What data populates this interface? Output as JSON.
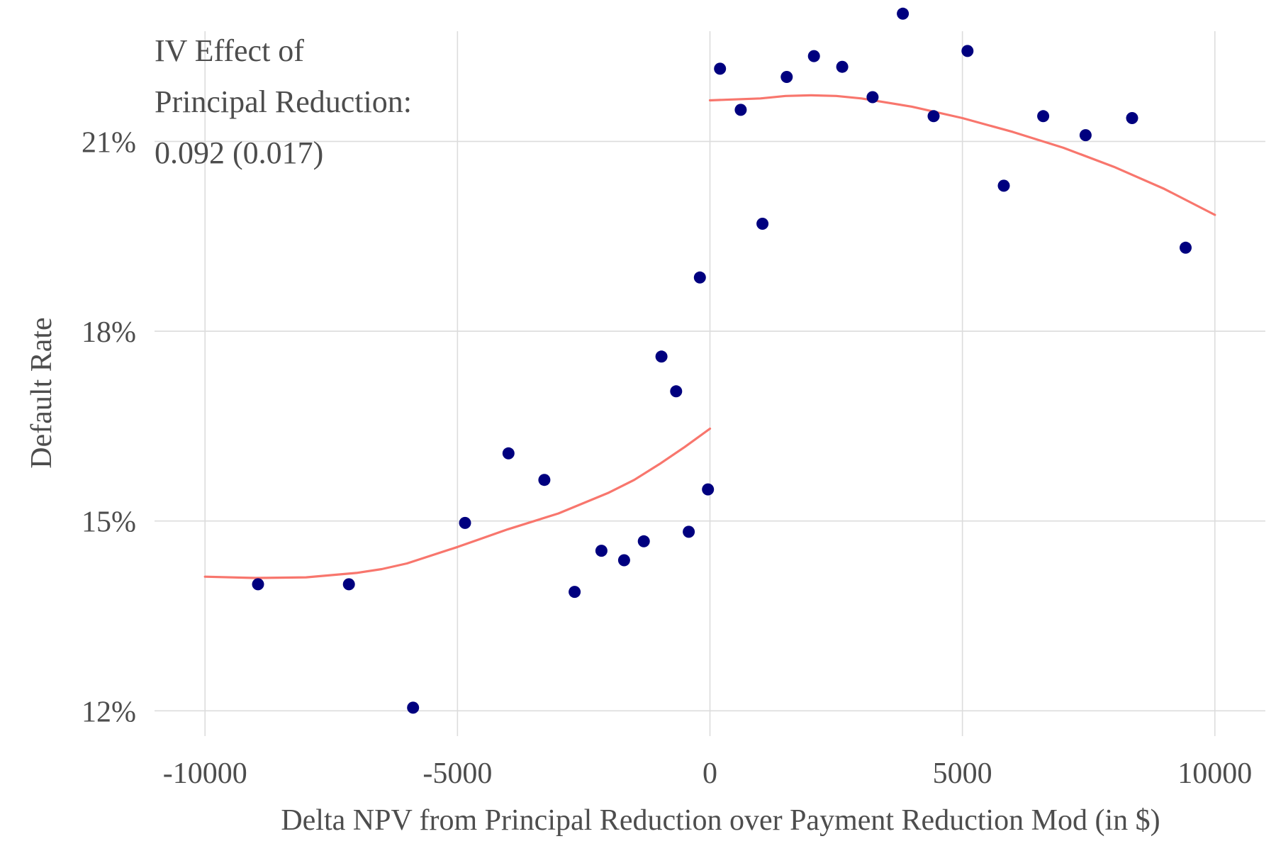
{
  "chart_data": {
    "type": "scatter",
    "title": "",
    "xlabel": "Delta NPV from Principal Reduction over Payment Reduction Mod (in $)",
    "ylabel": "Default Rate",
    "xlim": [
      -11000,
      11000
    ],
    "ylim": [
      11.6,
      22.9
    ],
    "x_ticks": [
      -10000,
      -5000,
      0,
      5000,
      10000
    ],
    "x_tick_labels": [
      "-10000",
      "-5000",
      "0",
      "5000",
      "10000"
    ],
    "y_ticks": [
      12,
      15,
      18,
      21
    ],
    "y_tick_labels": [
      "12%",
      "15%",
      "18%",
      "21%"
    ],
    "grid": true,
    "annotation": [
      "IV Effect of",
      "Principal Reduction:",
      "0.092 (0.017)"
    ],
    "colors": {
      "points": "#00007f",
      "fit": "#f8766d",
      "grid": "#dcdcdc",
      "text": "#4d4d4d"
    },
    "points": [
      {
        "x": -8950,
        "y": 14.0
      },
      {
        "x": -7150,
        "y": 14.0
      },
      {
        "x": -5880,
        "y": 12.05
      },
      {
        "x": -4850,
        "y": 14.97
      },
      {
        "x": -3990,
        "y": 16.07
      },
      {
        "x": -3280,
        "y": 15.65
      },
      {
        "x": -2680,
        "y": 13.88
      },
      {
        "x": -2150,
        "y": 14.53
      },
      {
        "x": -1700,
        "y": 14.38
      },
      {
        "x": -1310,
        "y": 14.68
      },
      {
        "x": -960,
        "y": 17.6
      },
      {
        "x": -670,
        "y": 17.05
      },
      {
        "x": -420,
        "y": 14.83
      },
      {
        "x": -200,
        "y": 18.85
      },
      {
        "x": -40,
        "y": 15.5
      },
      {
        "x": 200,
        "y": 22.15
      },
      {
        "x": 610,
        "y": 21.5
      },
      {
        "x": 1040,
        "y": 19.7
      },
      {
        "x": 1520,
        "y": 22.02
      },
      {
        "x": 2060,
        "y": 22.35
      },
      {
        "x": 2620,
        "y": 22.18
      },
      {
        "x": 3220,
        "y": 21.7
      },
      {
        "x": 3820,
        "y": 23.02
      },
      {
        "x": 4430,
        "y": 21.4
      },
      {
        "x": 5100,
        "y": 22.43
      },
      {
        "x": 5820,
        "y": 20.3
      },
      {
        "x": 6600,
        "y": 21.4
      },
      {
        "x": 7440,
        "y": 21.1
      },
      {
        "x": 8360,
        "y": 21.37
      },
      {
        "x": 9420,
        "y": 19.32
      }
    ],
    "fit_left": [
      {
        "x": -10000,
        "y": 14.12
      },
      {
        "x": -9000,
        "y": 14.1
      },
      {
        "x": -8000,
        "y": 14.11
      },
      {
        "x": -7000,
        "y": 14.18
      },
      {
        "x": -6500,
        "y": 14.24
      },
      {
        "x": -6000,
        "y": 14.33
      },
      {
        "x": -5000,
        "y": 14.59
      },
      {
        "x": -4000,
        "y": 14.87
      },
      {
        "x": -3000,
        "y": 15.12
      },
      {
        "x": -2000,
        "y": 15.45
      },
      {
        "x": -1500,
        "y": 15.65
      },
      {
        "x": -1000,
        "y": 15.9
      },
      {
        "x": -500,
        "y": 16.17
      },
      {
        "x": 0,
        "y": 16.46
      }
    ],
    "fit_right": [
      {
        "x": 0,
        "y": 21.65
      },
      {
        "x": 1000,
        "y": 21.68
      },
      {
        "x": 1500,
        "y": 21.72
      },
      {
        "x": 2000,
        "y": 21.73
      },
      {
        "x": 2500,
        "y": 21.72
      },
      {
        "x": 3000,
        "y": 21.68
      },
      {
        "x": 4000,
        "y": 21.55
      },
      {
        "x": 5000,
        "y": 21.37
      },
      {
        "x": 6000,
        "y": 21.15
      },
      {
        "x": 7000,
        "y": 20.9
      },
      {
        "x": 8000,
        "y": 20.6
      },
      {
        "x": 9000,
        "y": 20.25
      },
      {
        "x": 10000,
        "y": 19.84
      }
    ]
  }
}
